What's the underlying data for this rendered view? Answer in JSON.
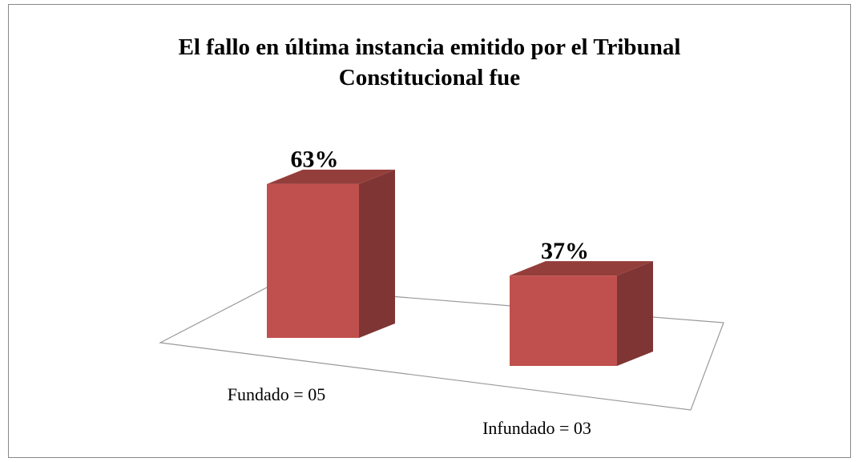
{
  "chart_data": {
    "type": "bar3d",
    "title": "El fallo en última instancia emitido por el Tribunal Constitucional fue",
    "categories": [
      "Fundado = 05",
      "Infundado = 03"
    ],
    "values": [
      63,
      37
    ],
    "value_labels": [
      "63%",
      "37%"
    ],
    "color": "#c0504d"
  }
}
